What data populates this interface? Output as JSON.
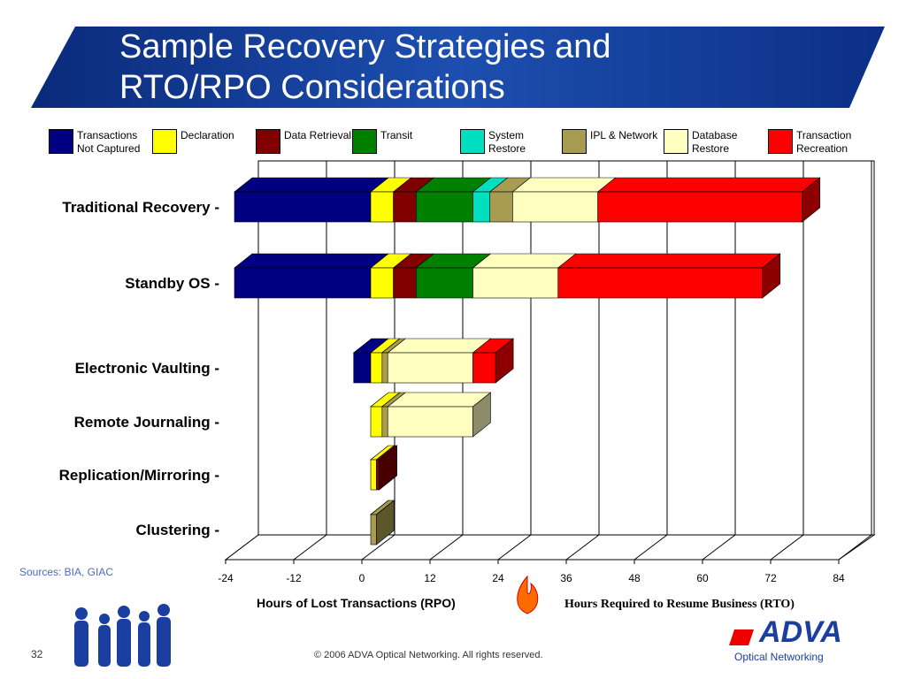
{
  "title": "Sample Recovery Strategies and RTO/RPO Considerations",
  "chart_data": {
    "type": "bar3d_stacked_horizontal",
    "categories": [
      "Traditional Recovery -",
      "Standby OS -",
      "Electronic Vaulting -",
      "Remote Journaling -",
      "Replication/Mirroring -",
      "Clustering -"
    ],
    "series": [
      {
        "name": "Transactions Not Captured",
        "color": "#000080",
        "values": [
          -24,
          -24,
          -3,
          0,
          0,
          0
        ]
      },
      {
        "name": "Declaration",
        "color": "#ffff00",
        "values": [
          4,
          4,
          2,
          2,
          1,
          0
        ]
      },
      {
        "name": "Data Retrieval",
        "color": "#800000",
        "values": [
          4,
          4,
          0,
          0,
          0.5,
          0
        ]
      },
      {
        "name": "Transit",
        "color": "#008000",
        "values": [
          10,
          10,
          0,
          0,
          0,
          0
        ]
      },
      {
        "name": "System Restore",
        "color": "#00e0c0",
        "values": [
          3,
          0,
          0,
          0,
          0,
          0
        ]
      },
      {
        "name": "IPL & Network",
        "color": "#a89c50",
        "values": [
          4,
          0,
          1,
          1,
          0,
          1
        ]
      },
      {
        "name": "Database Restore",
        "color": "#ffffc0",
        "values": [
          15,
          15,
          15,
          15,
          0,
          0
        ]
      },
      {
        "name": "Transaction Recreation",
        "color": "#ff0000",
        "values": [
          36,
          36,
          4,
          0,
          0,
          0
        ]
      }
    ],
    "xlim": [
      -24,
      84
    ],
    "xticks": [
      -24,
      -12,
      0,
      12,
      24,
      36,
      48,
      60,
      72,
      84
    ],
    "xlabel_left": "Hours of Lost Transactions (RPO)",
    "xlabel_right": "Hours Required to Resume Business (RTO)"
  },
  "sources": "Sources: BIA, GIAC",
  "page_number": "32",
  "copyright": "© 2006 ADVA Optical Networking. All rights reserved.",
  "logo": {
    "name": "ADVA",
    "tagline": "Optical Networking"
  }
}
